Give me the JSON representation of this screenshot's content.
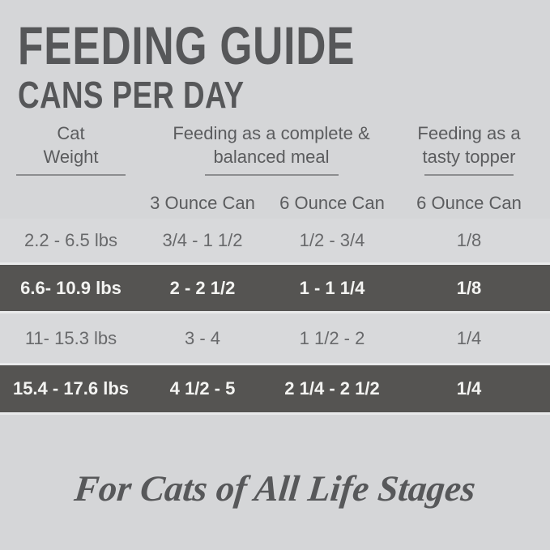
{
  "title": "FEEDING GUIDE",
  "subtitle": "CANS PER DAY",
  "table": {
    "col_headers": [
      {
        "label_lines": [
          "Cat",
          "Weight"
        ]
      },
      {
        "label_lines": [
          "Feeding as a complete &",
          "balanced meal"
        ]
      },
      {
        "label_lines": [
          "Feeding as a",
          "tasty topper"
        ]
      }
    ],
    "sub_headers": [
      "3 Ounce Can",
      "6 Ounce Can",
      "6 Ounce Can"
    ],
    "rows": [
      {
        "weight": "2.2 - 6.5 lbs",
        "complete_3oz": "3/4 - 1 1/2",
        "complete_6oz": "1/2 - 3/4",
        "topper_6oz": "1/8",
        "variant": "light"
      },
      {
        "weight": "6.6- 10.9 lbs",
        "complete_3oz": "2 - 2 1/2",
        "complete_6oz": "1 - 1 1/4",
        "topper_6oz": "1/8",
        "variant": "dark"
      },
      {
        "weight": "11- 15.3 lbs",
        "complete_3oz": "3 - 4",
        "complete_6oz": "1 1/2 - 2",
        "topper_6oz": "1/4",
        "variant": "light"
      },
      {
        "weight": "15.4 - 17.6 lbs",
        "complete_3oz": "4 1/2 - 5",
        "complete_6oz": "2 1/4 - 2 1/2",
        "topper_6oz": "1/4",
        "variant": "dark"
      }
    ]
  },
  "footer": {
    "tagline": "For Cats of All Life Stages"
  },
  "colors": {
    "background": "#d5d6d8",
    "light_row": "#d8d9db",
    "dark_row": "#555452",
    "dark_row_text": "#f3f3f1",
    "heading_text": "#565759",
    "body_text": "#68696b",
    "separator": "#e9eaeb",
    "underline": "#8c8d8f"
  }
}
